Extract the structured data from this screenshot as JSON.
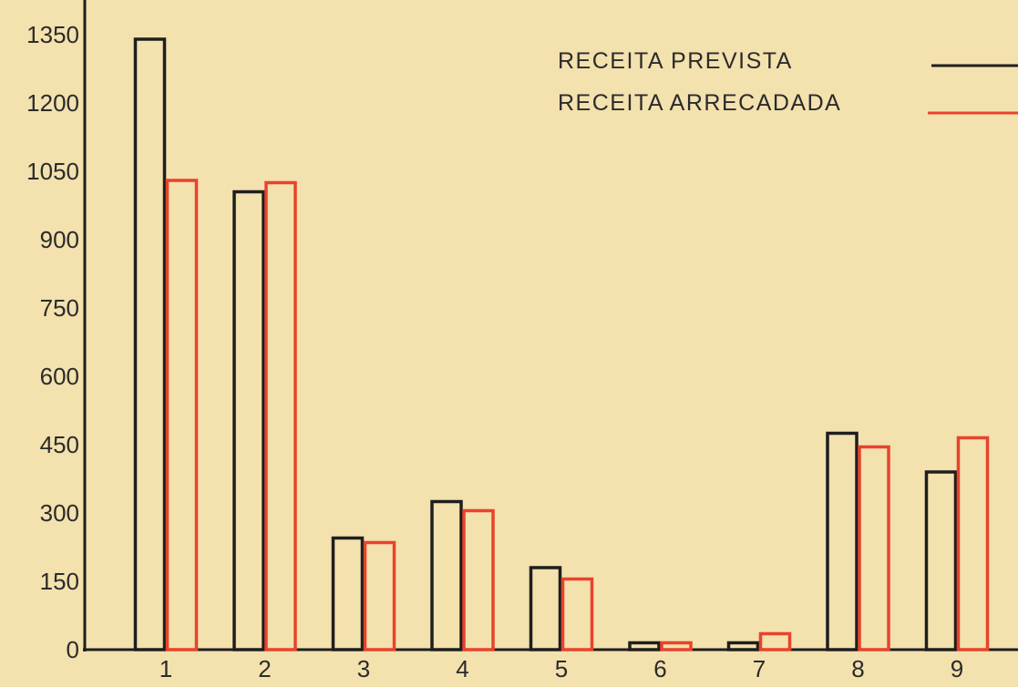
{
  "chart_data": {
    "type": "bar",
    "title": "",
    "xlabel": "",
    "ylabel": "",
    "categories": [
      "1",
      "2",
      "3",
      "4",
      "5",
      "6",
      "7",
      "8",
      "9"
    ],
    "series": [
      {
        "name": "RECEITA PREVISTA",
        "color": "#1e1e1e",
        "values": [
          1340,
          1005,
          245,
          325,
          180,
          15,
          15,
          475,
          390
        ]
      },
      {
        "name": "RECEITA ARRECADADA",
        "color": "#e8432c",
        "values": [
          1030,
          1025,
          235,
          305,
          155,
          15,
          35,
          445,
          465
        ]
      }
    ],
    "ylim": [
      0,
      1350
    ],
    "yticks": [
      "0",
      "150",
      "300",
      "450",
      "600",
      "750",
      "900",
      "1050",
      "1200",
      "1350"
    ],
    "grid": false,
    "legend_position": "top-right"
  }
}
